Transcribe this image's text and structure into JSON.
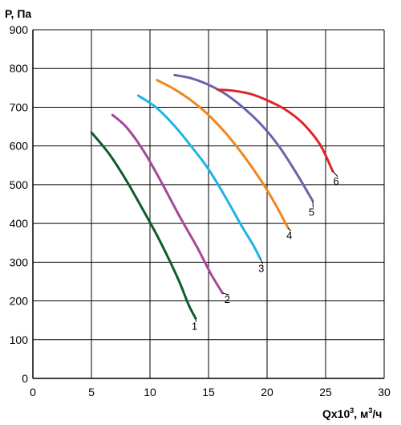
{
  "chart_data": {
    "type": "line",
    "title": "",
    "ylabel": "P, Па",
    "xlabel_main": "Qx10",
    "xlabel_sup": "3",
    "xlabel_sep": ", ",
    "xlabel_unit_pre": "м",
    "xlabel_unit_sup": "3",
    "xlabel_unit_post": "/ч",
    "xlim": [
      0,
      30
    ],
    "ylim": [
      0,
      900
    ],
    "xticks": [
      0,
      5,
      10,
      15,
      20,
      25,
      30
    ],
    "yticks": [
      0,
      100,
      200,
      300,
      400,
      500,
      600,
      700,
      800,
      900
    ],
    "grid": true,
    "series": [
      {
        "name": "1",
        "color": "#0d5c2a",
        "points": [
          [
            5.0,
            635
          ],
          [
            6.5,
            580
          ],
          [
            8.0,
            510
          ],
          [
            9.5,
            430
          ],
          [
            10.5,
            375
          ],
          [
            11.5,
            315
          ],
          [
            12.5,
            250
          ],
          [
            13.3,
            190
          ],
          [
            13.9,
            155
          ]
        ]
      },
      {
        "name": "2",
        "color": "#a3489a",
        "points": [
          [
            6.8,
            680
          ],
          [
            8.0,
            648
          ],
          [
            9.5,
            585
          ],
          [
            11.0,
            505
          ],
          [
            12.5,
            420
          ],
          [
            14.0,
            340
          ],
          [
            15.2,
            270
          ],
          [
            16.2,
            220
          ]
        ]
      },
      {
        "name": "3",
        "color": "#1fb4e5",
        "points": [
          [
            9.0,
            730
          ],
          [
            10.5,
            700
          ],
          [
            12.0,
            655
          ],
          [
            13.5,
            600
          ],
          [
            15.0,
            540
          ],
          [
            16.5,
            465
          ],
          [
            17.8,
            395
          ],
          [
            18.8,
            345
          ],
          [
            19.4,
            310
          ]
        ]
      },
      {
        "name": "4",
        "color": "#f0861f",
        "points": [
          [
            10.6,
            770
          ],
          [
            12.0,
            748
          ],
          [
            13.5,
            718
          ],
          [
            15.0,
            680
          ],
          [
            16.5,
            632
          ],
          [
            18.0,
            575
          ],
          [
            19.5,
            510
          ],
          [
            20.7,
            450
          ],
          [
            21.8,
            388
          ]
        ]
      },
      {
        "name": "5",
        "color": "#6a64aa",
        "points": [
          [
            12.1,
            783
          ],
          [
            13.5,
            775
          ],
          [
            15.0,
            758
          ],
          [
            16.5,
            733
          ],
          [
            18.0,
            698
          ],
          [
            19.5,
            655
          ],
          [
            21.0,
            600
          ],
          [
            22.5,
            530
          ],
          [
            23.9,
            458
          ]
        ]
      },
      {
        "name": "6",
        "color": "#e0242a",
        "points": [
          [
            15.8,
            745
          ],
          [
            17.0,
            743
          ],
          [
            18.5,
            735
          ],
          [
            20.0,
            718
          ],
          [
            21.5,
            695
          ],
          [
            23.0,
            660
          ],
          [
            24.5,
            605
          ],
          [
            25.6,
            535
          ]
        ]
      }
    ],
    "labels": [
      {
        "text": "1",
        "x": 13.8,
        "y": 125
      },
      {
        "text": "2",
        "x": 16.6,
        "y": 195
      },
      {
        "text": "3",
        "x": 19.5,
        "y": 275
      },
      {
        "text": "4",
        "x": 21.9,
        "y": 360
      },
      {
        "text": "5",
        "x": 23.8,
        "y": 420
      },
      {
        "text": "6",
        "x": 25.9,
        "y": 500
      }
    ]
  }
}
